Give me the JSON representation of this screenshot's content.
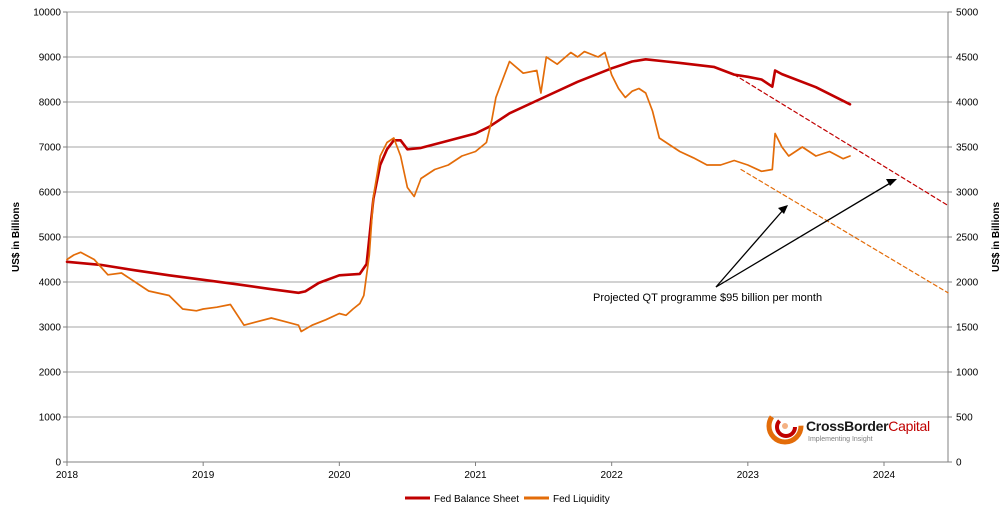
{
  "chart_data": {
    "type": "line",
    "ylabel_left": "US$ in Billions",
    "ylabel_right": "US$ in Billions",
    "x_ticks": [
      "2018",
      "2019",
      "2020",
      "2021",
      "2022",
      "2023",
      "2024"
    ],
    "y_left_ticks": [
      "0",
      "1000",
      "2000",
      "3000",
      "4000",
      "5000",
      "6000",
      "7000",
      "8000",
      "9000",
      "10000"
    ],
    "y_right_ticks": [
      "0",
      "500",
      "1000",
      "1500",
      "2000",
      "2500",
      "3000",
      "3500",
      "4000",
      "4500",
      "5000"
    ],
    "xlim": [
      2018.0,
      2024.47
    ],
    "ylim_left": [
      0,
      10000
    ],
    "ylim_right": [
      0,
      5000
    ],
    "grid": true,
    "legend_position": "bottom-center",
    "series": [
      {
        "name": "Fed Balance Sheet",
        "axis": "left",
        "color": "#c00000",
        "x": [
          2018.0,
          2018.25,
          2018.5,
          2018.75,
          2019.0,
          2019.25,
          2019.5,
          2019.7,
          2019.75,
          2019.85,
          2020.0,
          2020.15,
          2020.2,
          2020.25,
          2020.3,
          2020.35,
          2020.4,
          2020.45,
          2020.5,
          2020.6,
          2020.75,
          2021.0,
          2021.1,
          2021.25,
          2021.5,
          2021.75,
          2022.0,
          2022.15,
          2022.25,
          2022.4,
          2022.5,
          2022.75,
          2022.9,
          2023.0,
          2023.1,
          2023.18,
          2023.2,
          2023.25,
          2023.5,
          2023.75
        ],
        "values": [
          4450,
          4380,
          4260,
          4150,
          4050,
          3950,
          3840,
          3760,
          3790,
          3980,
          4150,
          4180,
          4400,
          5850,
          6600,
          6950,
          7150,
          7150,
          6950,
          6980,
          7100,
          7300,
          7450,
          7750,
          8100,
          8450,
          8750,
          8900,
          8950,
          8900,
          8870,
          8780,
          8610,
          8560,
          8500,
          8340,
          8700,
          8620,
          8330,
          7950
        ]
      },
      {
        "name": "Fed Liquidity",
        "axis": "right",
        "color": "#e36c09",
        "x": [
          2018.0,
          2018.05,
          2018.1,
          2018.2,
          2018.3,
          2018.4,
          2018.5,
          2018.6,
          2018.75,
          2018.85,
          2018.95,
          2019.0,
          2019.1,
          2019.2,
          2019.3,
          2019.4,
          2019.5,
          2019.6,
          2019.7,
          2019.72,
          2019.8,
          2019.9,
          2020.0,
          2020.05,
          2020.1,
          2020.15,
          2020.18,
          2020.22,
          2020.25,
          2020.3,
          2020.35,
          2020.4,
          2020.45,
          2020.5,
          2020.55,
          2020.6,
          2020.7,
          2020.8,
          2020.9,
          2021.0,
          2021.08,
          2021.12,
          2021.15,
          2021.2,
          2021.25,
          2021.35,
          2021.45,
          2021.48,
          2021.52,
          2021.6,
          2021.7,
          2021.75,
          2021.8,
          2021.9,
          2021.95,
          2022.0,
          2022.05,
          2022.1,
          2022.15,
          2022.2,
          2022.25,
          2022.3,
          2022.35,
          2022.45,
          2022.5,
          2022.6,
          2022.7,
          2022.8,
          2022.9,
          2023.0,
          2023.1,
          2023.18,
          2023.2,
          2023.25,
          2023.3,
          2023.4,
          2023.5,
          2023.6,
          2023.7,
          2023.75
        ],
        "values": [
          2250,
          2300,
          2330,
          2250,
          2080,
          2100,
          2000,
          1900,
          1850,
          1700,
          1680,
          1700,
          1720,
          1750,
          1520,
          1560,
          1600,
          1560,
          1520,
          1450,
          1520,
          1580,
          1650,
          1630,
          1700,
          1760,
          1850,
          2300,
          2950,
          3400,
          3550,
          3600,
          3400,
          3050,
          2950,
          3150,
          3250,
          3300,
          3400,
          3450,
          3550,
          3800,
          4050,
          4250,
          4450,
          4320,
          4350,
          4100,
          4500,
          4420,
          4550,
          4500,
          4560,
          4500,
          4550,
          4300,
          4150,
          4050,
          4120,
          4150,
          4100,
          3900,
          3600,
          3500,
          3450,
          3380,
          3300,
          3300,
          3350,
          3300,
          3230,
          3250,
          3650,
          3500,
          3400,
          3500,
          3400,
          3450,
          3370,
          3400
        ]
      },
      {
        "name": "",
        "axis": "left",
        "style": "dashed",
        "color": "#c00000",
        "x": [
          2022.9,
          2024.47
        ],
        "values": [
          8610,
          5700
        ]
      },
      {
        "name": "",
        "axis": "right",
        "style": "dashed",
        "color": "#e36c09",
        "x": [
          2022.95,
          2024.47
        ],
        "values": [
          3250,
          1880
        ]
      }
    ],
    "annotations": [
      {
        "text": "Projected QT programme $95 billion per month"
      }
    ]
  },
  "logo": {
    "name": "CrossBorder Capital",
    "part1": "CrossBorder",
    "part2": "Capital",
    "tagline": "Implementing Insight"
  },
  "colors": {
    "balance_sheet": "#c00000",
    "liquidity": "#e36c09",
    "grid": "#a6a6a6",
    "axis": "#808080",
    "text": "#000000"
  }
}
